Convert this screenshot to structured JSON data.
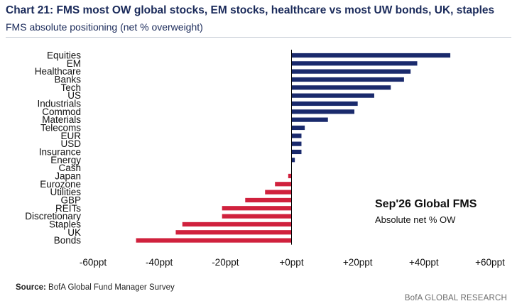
{
  "header": {
    "title": "Chart 21: FMS most OW global stocks, EM stocks, healthcare vs most UW bonds, UK, staples",
    "subtitle": "FMS absolute positioning (net % overweight)"
  },
  "footer": {
    "source_label": "Source:",
    "source_text": "BofA Global Fund Manager Survey",
    "brand": "BofA GLOBAL RESEARCH"
  },
  "colors": {
    "positive": "#1a2a6c",
    "negative": "#d0213d",
    "axis": "#000000",
    "title": "#1a2a5a"
  },
  "chart_data": {
    "type": "bar",
    "orientation": "horizontal",
    "categories": [
      "Equities",
      "EM",
      "Healthcare",
      "Banks",
      "Tech",
      "US",
      "Industrials",
      "Commod",
      "Materials",
      "Telecoms",
      "EUR",
      "USD",
      "Insurance",
      "Energy",
      "Cash",
      "Japan",
      "Eurozone",
      "Utilities",
      "GBP",
      "REITs",
      "Discretionary",
      "Staples",
      "UK",
      "Bonds"
    ],
    "values": [
      48,
      38,
      36,
      34,
      30,
      25,
      20,
      19,
      11,
      4,
      3,
      3,
      3,
      1,
      0,
      -1,
      -5,
      -8,
      -14,
      -21,
      -21,
      -33,
      -35,
      -47
    ],
    "xlim": [
      -60,
      60
    ],
    "xticks": [
      "-60ppt",
      "-40ppt",
      "-20ppt",
      "+0ppt",
      "+20ppt",
      "+40ppt",
      "+60ppt"
    ],
    "xtick_values": [
      -60,
      -40,
      -20,
      0,
      20,
      40,
      60
    ],
    "annotation_title": "Sep'26 Global FMS",
    "annotation_sub": "Absolute net % OW",
    "grid": false
  }
}
